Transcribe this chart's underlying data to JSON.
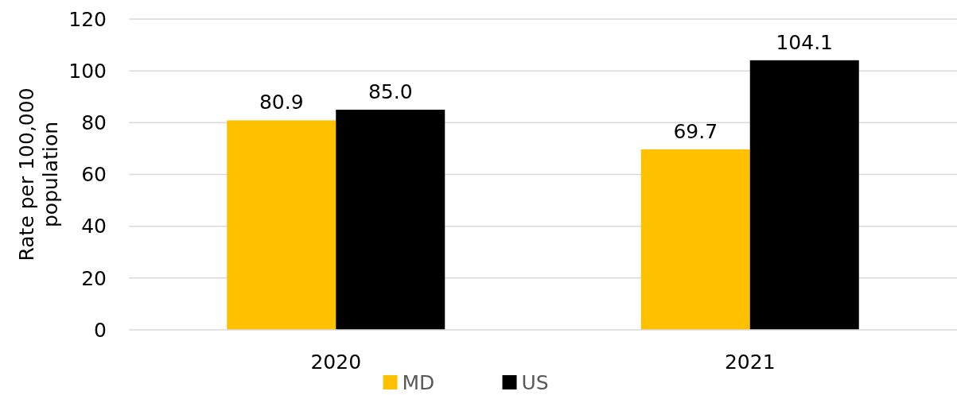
{
  "chart_data": {
    "type": "bar",
    "ylabel": "Rate per 100,000 population",
    "categories": [
      "2020",
      "2021"
    ],
    "series": [
      {
        "name": "MD",
        "color": "#ffc000",
        "values": [
          80.9,
          69.7
        ],
        "value_labels": [
          "80.9",
          "69.7"
        ]
      },
      {
        "name": "US",
        "color": "#000000",
        "values": [
          85.0,
          104.1
        ],
        "value_labels": [
          "85.0",
          "104.1"
        ]
      }
    ],
    "ylim": [
      0,
      120
    ],
    "yticks": [
      0,
      20,
      40,
      60,
      80,
      100,
      120
    ],
    "grid": "y",
    "legend": "bottom"
  }
}
